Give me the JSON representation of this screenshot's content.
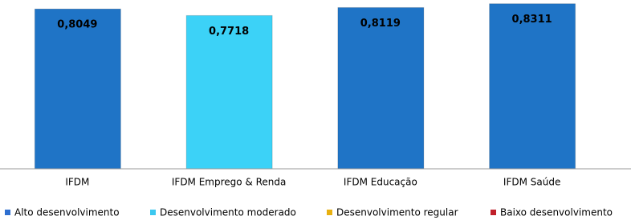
{
  "chart_data": {
    "type": "bar",
    "categories": [
      "IFDM",
      "IFDM Emprego & Renda",
      "IFDM Educação",
      "IFDM Saúde"
    ],
    "values": [
      0.8049,
      0.7718,
      0.8119,
      0.8311
    ],
    "value_labels": [
      "0,8049",
      "0,7718",
      "0,8119",
      "0,8311"
    ],
    "colors": [
      "#1f74c6",
      "#3cd2f7",
      "#1f74c6",
      "#1f74c6"
    ],
    "ylim": [
      0,
      0.85
    ],
    "legend": [
      {
        "name": "Alto desenvolvimento",
        "color": "#2e6fd0"
      },
      {
        "name": "Desenvolvimento moderado",
        "color": "#3cc8f0"
      },
      {
        "name": "Desenvolvimento regular",
        "color": "#e8b010"
      },
      {
        "name": "Baixo desenvolvimento",
        "color": "#c0202a"
      }
    ]
  }
}
